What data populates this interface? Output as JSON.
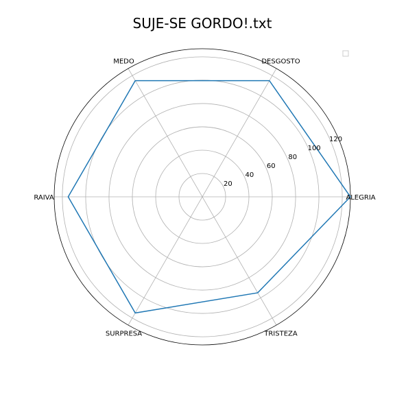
{
  "chart_data": {
    "type": "radar",
    "title": "SUJE-SE GORDO!.txt",
    "categories": [
      "ALEGRIA",
      "DESGOSTO",
      "MEDO",
      "RAIVA",
      "SURPRESA",
      "TRISTEZA"
    ],
    "rticks": [
      20,
      40,
      60,
      80,
      100,
      120
    ],
    "rlim": [
      0,
      127
    ],
    "grid": true,
    "legend": "top-right",
    "series": [
      {
        "values": [
          127,
          115,
          115,
          115,
          115,
          95
        ],
        "color": "#1f77b4"
      }
    ]
  }
}
